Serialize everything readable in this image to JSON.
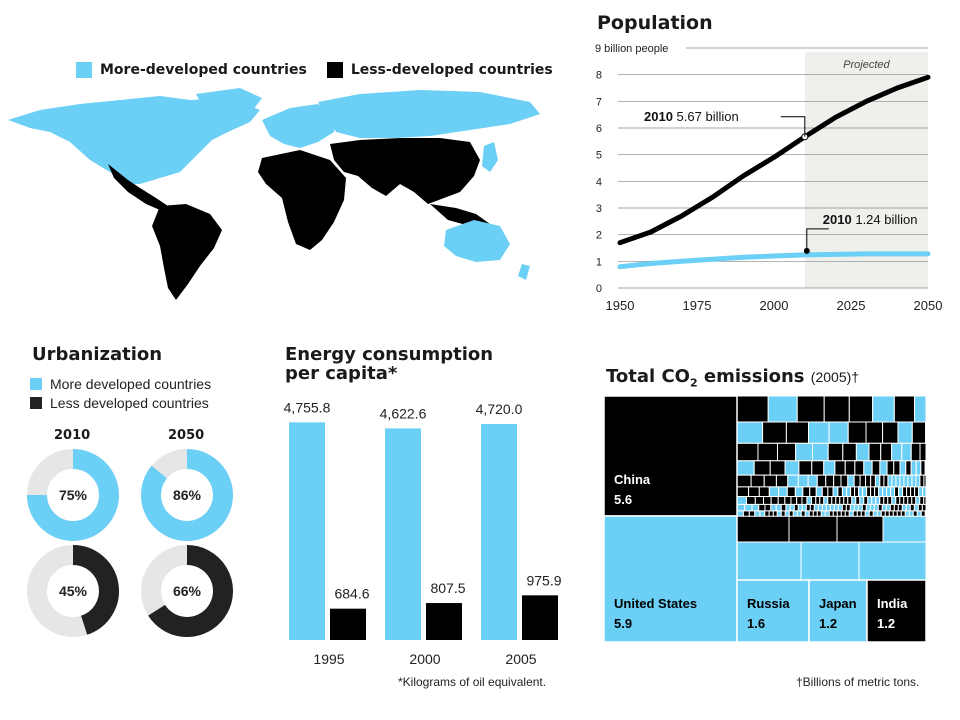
{
  "colors": {
    "more": "#6ccff6",
    "less": "#000000",
    "ring_bg": "#e6e6e6",
    "projected_bg": "#eef0ec"
  },
  "map": {
    "legend": [
      {
        "label": "More-developed countries",
        "color": "#6ccff6"
      },
      {
        "label": "Less-developed countries",
        "color": "#000000"
      }
    ]
  },
  "population": {
    "title": "Population",
    "projected_label": "Projected",
    "ylabel_top": "9 billion people",
    "annotations": [
      {
        "year_bold": "2010",
        "text": "5.67 billion"
      },
      {
        "year_bold": "2010",
        "text": "1.24 billion"
      }
    ]
  },
  "urbanization": {
    "title": "Urbanization",
    "legend": [
      "More developed countries",
      "Less developed countries"
    ],
    "years": [
      "2010",
      "2050"
    ],
    "rings": [
      {
        "label": "75%",
        "value": 0.75,
        "group": "more"
      },
      {
        "label": "86%",
        "value": 0.86,
        "group": "more"
      },
      {
        "label": "45%",
        "value": 0.45,
        "group": "less"
      },
      {
        "label": "66%",
        "value": 0.66,
        "group": "less"
      }
    ]
  },
  "energy": {
    "title_line1": "Energy consumption",
    "title_line2": "per capita*",
    "footnote": "*Kilograms of oil equivalent."
  },
  "co2": {
    "title_main": "Total CO",
    "title_sub": "2",
    "title_word": " emissions",
    "title_year": "(2005)†",
    "footnote": "†Billions of metric tons.",
    "blocks": [
      {
        "name": "China",
        "value": "5.6"
      },
      {
        "name": "United States",
        "value": "5.9"
      },
      {
        "name": "Russia",
        "value": "1.6"
      },
      {
        "name": "Japan",
        "value": "1.2"
      },
      {
        "name": "India",
        "value": "1.2"
      }
    ]
  },
  "chart_data": [
    {
      "type": "line",
      "title": "Population",
      "xlabel": "",
      "ylabel": "9 billion people",
      "xlim": [
        1950,
        2050
      ],
      "ylim": [
        0,
        9
      ],
      "x_ticks": [
        1950,
        1975,
        2000,
        2025,
        2050
      ],
      "y_ticks": [
        0,
        1,
        2,
        3,
        4,
        5,
        6,
        7,
        8,
        9
      ],
      "projected_from": 2010,
      "series": [
        {
          "color": "#000000",
          "x": [
            1950,
            1960,
            1970,
            1980,
            1990,
            2000,
            2010,
            2020,
            2030,
            2040,
            2050
          ],
          "y": [
            1.7,
            2.1,
            2.7,
            3.4,
            4.2,
            4.9,
            5.67,
            6.4,
            7.0,
            7.5,
            7.9
          ]
        },
        {
          "color": "#6ccff6",
          "x": [
            1950,
            1960,
            1970,
            1980,
            1990,
            2000,
            2010,
            2020,
            2030,
            2040,
            2050
          ],
          "y": [
            0.8,
            0.92,
            1.0,
            1.08,
            1.15,
            1.2,
            1.24,
            1.26,
            1.28,
            1.28,
            1.28
          ]
        }
      ]
    },
    {
      "type": "bar",
      "title": "Energy consumption per capita*",
      "categories": [
        "1995",
        "2000",
        "2005"
      ],
      "ylim": [
        0,
        5200
      ],
      "series": [
        {
          "color": "#6ccff6",
          "values": [
            4755.8,
            4622.6,
            4720.0
          ],
          "labels": [
            "4,755.8",
            "4,622.6",
            "4,720.0"
          ]
        },
        {
          "color": "#000000",
          "values": [
            684.6,
            807.5,
            975.9
          ],
          "labels": [
            "684.6",
            "807.5",
            "975.9"
          ]
        }
      ]
    },
    {
      "type": "pie",
      "title": "Urbanization",
      "categories": [
        "2010",
        "2050"
      ],
      "series": [
        {
          "name": "More developed countries",
          "values": [
            75,
            86
          ]
        },
        {
          "name": "Less developed countries",
          "values": [
            45,
            66
          ]
        }
      ]
    },
    {
      "type": "heatmap",
      "title": "Total CO2 emissions (2005)†",
      "categories": [
        "China",
        "United States",
        "Russia",
        "Japan",
        "India"
      ],
      "values": [
        5.6,
        5.9,
        1.6,
        1.2,
        1.2
      ]
    }
  ]
}
